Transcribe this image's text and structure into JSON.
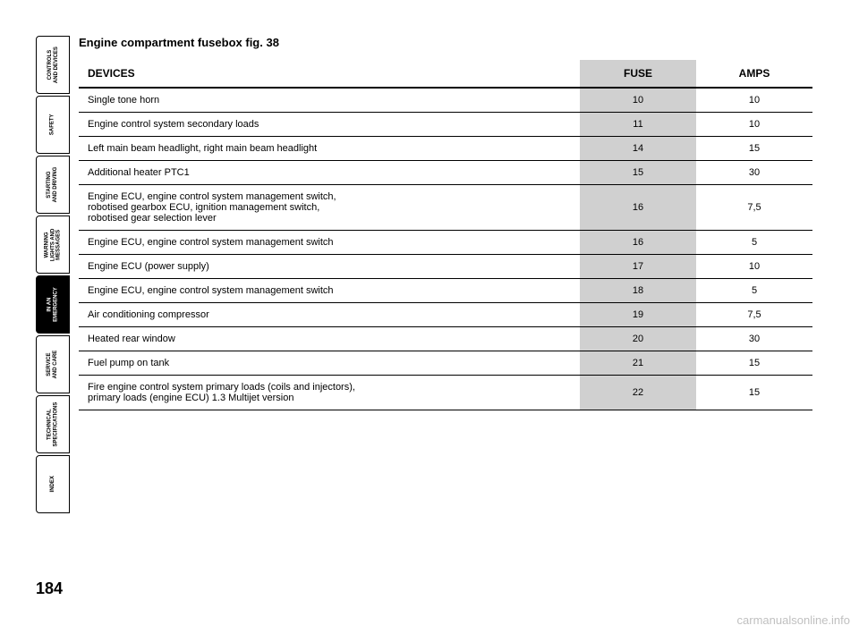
{
  "section_title": "Engine compartment fusebox fig. 38",
  "page_number": "184",
  "watermark": "carmanualsonline.info",
  "sidebar": {
    "tabs": [
      {
        "label": "CONTROLS\nAND DEVICES",
        "active": false
      },
      {
        "label": "SAFETY",
        "active": false
      },
      {
        "label": "STARTING\nAND DRIVING",
        "active": false
      },
      {
        "label": "WARNING\nLIGHTS AND\nMESSAGES",
        "active": false
      },
      {
        "label": "IN AN\nEMERGENCY",
        "active": true
      },
      {
        "label": "SERVICE\nAND CARE",
        "active": false
      },
      {
        "label": "TECHNICAL\nSPECIFICATIONS",
        "active": false
      },
      {
        "label": "INDEX",
        "active": false
      }
    ]
  },
  "table": {
    "type": "table",
    "columns": [
      "DEVICES",
      "FUSE",
      "AMPS"
    ],
    "column_widths": [
      "560px",
      "130px",
      "130px"
    ],
    "header_bg": "#ffffff",
    "fuse_col_bg": "#d0d0d0",
    "border_color": "#000000",
    "header_fontsize": 12,
    "cell_fontsize": 11,
    "rows": [
      {
        "device": "Single tone horn",
        "fuse": "10",
        "amps": "10"
      },
      {
        "device": "Engine control system secondary loads",
        "fuse": "11",
        "amps": "10"
      },
      {
        "device": "Left main beam headlight, right main beam headlight",
        "fuse": "14",
        "amps": "15"
      },
      {
        "device": "Additional heater PTC1",
        "fuse": "15",
        "amps": "30"
      },
      {
        "device": "Engine ECU, engine control system management switch,\nrobotised gearbox ECU, ignition management switch,\nrobotised gear selection lever",
        "fuse": "16",
        "amps": "7,5"
      },
      {
        "device": "Engine ECU, engine control system management switch",
        "fuse": "16",
        "amps": "5"
      },
      {
        "device": "Engine ECU (power supply)",
        "fuse": "17",
        "amps": "10"
      },
      {
        "device": "Engine ECU, engine control system management switch",
        "fuse": "18",
        "amps": "5"
      },
      {
        "device": "Air conditioning compressor",
        "fuse": "19",
        "amps": "7,5"
      },
      {
        "device": "Heated rear window",
        "fuse": "20",
        "amps": "30"
      },
      {
        "device": "Fuel pump on tank",
        "fuse": "21",
        "amps": "15"
      },
      {
        "device": "Fire engine control system primary loads (coils and injectors),\nprimary loads (engine ECU) 1.3 Multijet version",
        "fuse": "22",
        "amps": "15"
      }
    ]
  }
}
